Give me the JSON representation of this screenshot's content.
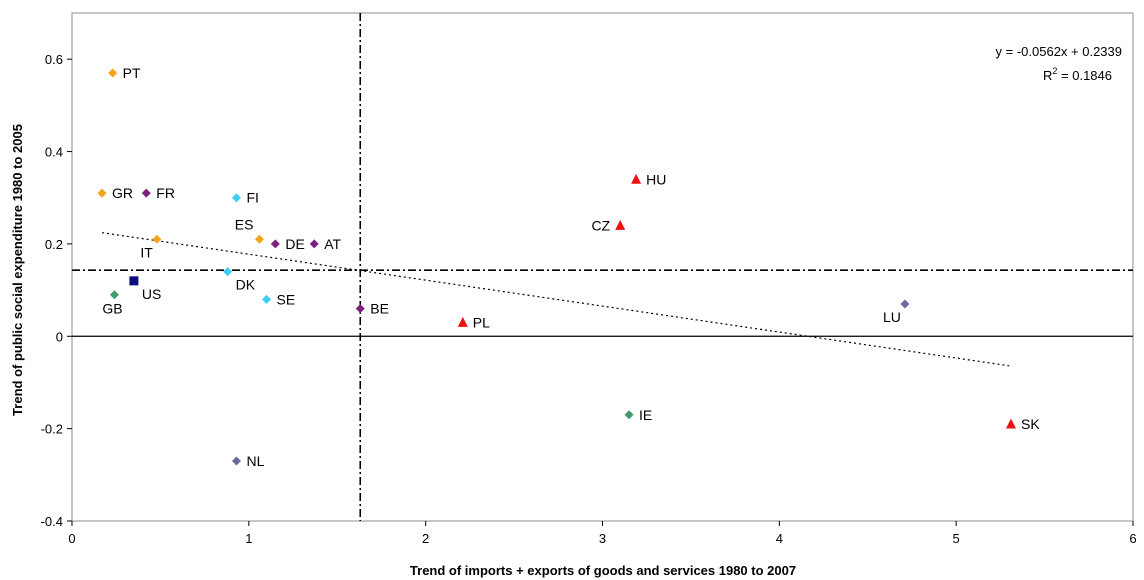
{
  "chart_data": {
    "type": "scatter",
    "xlabel": "Trend of imports + exports of goods and services 1980 to 2007",
    "ylabel": "Trend of public social expenditure 1980 to 2005",
    "xlim": [
      0,
      6
    ],
    "ylim": [
      -0.4,
      0.7
    ],
    "x_ticks": [
      "0",
      "1",
      "2",
      "3",
      "4",
      "5",
      "6"
    ],
    "y_ticks": [
      "-0.4",
      "-0.2",
      "0",
      "0.2",
      "0.4",
      "0.6"
    ],
    "grid": false,
    "legend": "none",
    "trendline": {
      "slope": -0.0562,
      "intercept": 0.2339,
      "x_range": [
        0.17,
        5.3
      ],
      "equation": "y = -0.0562x + 0.2339",
      "r2_label": "R",
      "r2_sup": "2",
      "r2_value": " = 0.1846"
    },
    "reference_lines": {
      "x_mean": 1.63,
      "y_mean": 0.143
    },
    "points": [
      {
        "label": "PT",
        "x": 0.23,
        "y": 0.57,
        "color": "#f7a21b",
        "shape": "diamond",
        "label_pos": "right"
      },
      {
        "label": "GR",
        "x": 0.17,
        "y": 0.31,
        "color": "#f7a21b",
        "shape": "diamond",
        "label_pos": "right"
      },
      {
        "label": "FR",
        "x": 0.42,
        "y": 0.31,
        "color": "#7b2180",
        "shape": "diamond",
        "label_pos": "right"
      },
      {
        "label": "FI",
        "x": 0.93,
        "y": 0.3,
        "color": "#3ccdf4",
        "shape": "diamond",
        "label_pos": "right"
      },
      {
        "label": "ES",
        "x": 1.06,
        "y": 0.21,
        "color": "#f7a21b",
        "shape": "diamond",
        "label_pos": "above-left"
      },
      {
        "label": "IT",
        "x": 0.48,
        "y": 0.21,
        "color": "#f7a21b",
        "shape": "diamond",
        "label_pos": "below-left"
      },
      {
        "label": "DE",
        "x": 1.15,
        "y": 0.2,
        "color": "#7b2180",
        "shape": "diamond",
        "label_pos": "right"
      },
      {
        "label": "AT",
        "x": 1.37,
        "y": 0.2,
        "color": "#7b2180",
        "shape": "diamond",
        "label_pos": "right"
      },
      {
        "label": "DK",
        "x": 0.88,
        "y": 0.14,
        "color": "#3ccdf4",
        "shape": "diamond",
        "label_pos": "below-right"
      },
      {
        "label": "US",
        "x": 0.35,
        "y": 0.12,
        "color": "#0d0d7a",
        "shape": "square",
        "label_pos": "below-right"
      },
      {
        "label": "GB",
        "x": 0.24,
        "y": 0.09,
        "color": "#3f9b6e",
        "shape": "diamond",
        "label_pos": "below"
      },
      {
        "label": "SE",
        "x": 1.1,
        "y": 0.08,
        "color": "#3ccdf4",
        "shape": "diamond",
        "label_pos": "right"
      },
      {
        "label": "BE",
        "x": 1.63,
        "y": 0.06,
        "color": "#7b2180",
        "shape": "diamond",
        "label_pos": "right"
      },
      {
        "label": "NL",
        "x": 0.93,
        "y": -0.27,
        "color": "#6a6a9e",
        "shape": "diamond",
        "label_pos": "right"
      },
      {
        "label": "HU",
        "x": 3.19,
        "y": 0.34,
        "color": "#ee1111",
        "shape": "triangle",
        "label_pos": "right"
      },
      {
        "label": "CZ",
        "x": 3.1,
        "y": 0.24,
        "color": "#ee1111",
        "shape": "triangle",
        "label_pos": "left"
      },
      {
        "label": "PL",
        "x": 2.21,
        "y": 0.03,
        "color": "#ee1111",
        "shape": "triangle",
        "label_pos": "right"
      },
      {
        "label": "IE",
        "x": 3.15,
        "y": -0.17,
        "color": "#3f9b6e",
        "shape": "diamond",
        "label_pos": "right"
      },
      {
        "label": "LU",
        "x": 4.71,
        "y": 0.07,
        "color": "#6a6a9e",
        "shape": "diamond",
        "label_pos": "below-left"
      },
      {
        "label": "SK",
        "x": 5.31,
        "y": -0.19,
        "color": "#ee1111",
        "shape": "triangle",
        "label_pos": "right"
      }
    ]
  }
}
